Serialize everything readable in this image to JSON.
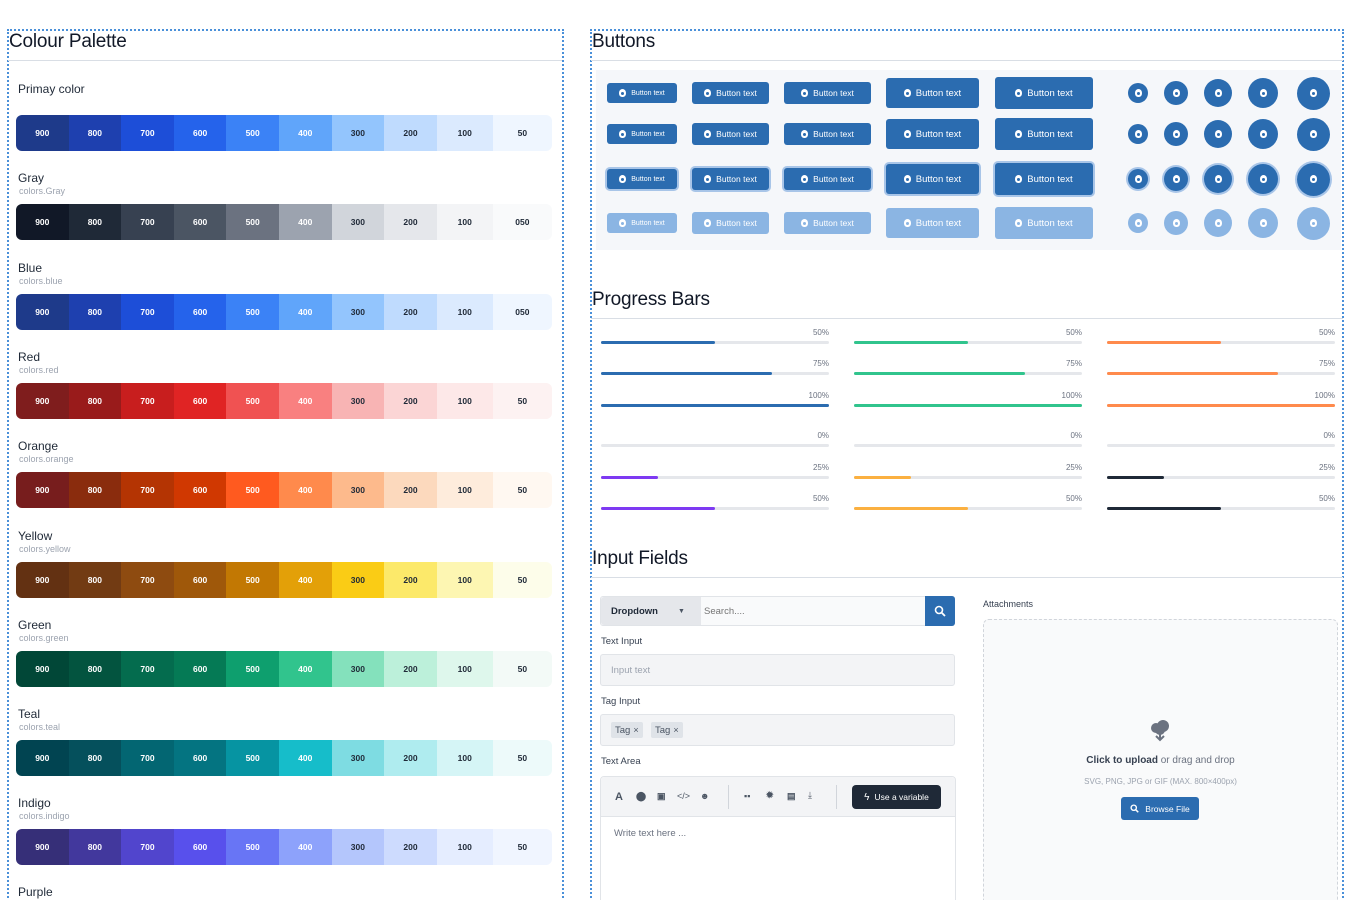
{
  "palette": {
    "title": "Colour Palette",
    "groups": [
      {
        "name": "Primay color",
        "sub": "",
        "labels": [
          "900",
          "800",
          "700",
          "600",
          "500",
          "400",
          "300",
          "200",
          "100",
          "50"
        ],
        "colors": [
          "#1e3a8a",
          "#1e40af",
          "#1d4ed8",
          "#2563eb",
          "#3b82f6",
          "#60a5fa",
          "#93c5fd",
          "#bfdbfe",
          "#dbeafe",
          "#eff6ff"
        ]
      },
      {
        "name": "Gray",
        "sub": "colors.Gray",
        "labels": [
          "900",
          "800",
          "700",
          "600",
          "500",
          "400",
          "300",
          "200",
          "100",
          "050"
        ],
        "colors": [
          "#111827",
          "#1f2937",
          "#374151",
          "#4b5563",
          "#6b7280",
          "#9ca3af",
          "#d1d5db",
          "#e5e7eb",
          "#f3f4f6",
          "#f9fafb"
        ]
      },
      {
        "name": "Blue",
        "sub": "colors.blue",
        "labels": [
          "900",
          "800",
          "700",
          "600",
          "500",
          "400",
          "300",
          "200",
          "100",
          "050"
        ],
        "colors": [
          "#1e3a8a",
          "#1e40af",
          "#1d4ed8",
          "#2563eb",
          "#3b82f6",
          "#60a5fa",
          "#93c5fd",
          "#bfdbfe",
          "#dbeafe",
          "#eff6ff"
        ]
      },
      {
        "name": "Red",
        "sub": "colors.red",
        "labels": [
          "900",
          "800",
          "700",
          "600",
          "500",
          "400",
          "300",
          "200",
          "100",
          "50"
        ],
        "colors": [
          "#7f1d1d",
          "#991b1b",
          "#c81e1e",
          "#e02424",
          "#f05252",
          "#f98080",
          "#f8b4b4",
          "#fbd5d5",
          "#fde8e8",
          "#fdf2f2"
        ]
      },
      {
        "name": "Orange",
        "sub": "colors.orange",
        "labels": [
          "900",
          "800",
          "700",
          "600",
          "500",
          "400",
          "300",
          "200",
          "100",
          "50"
        ],
        "colors": [
          "#771d1d",
          "#8a2c0d",
          "#b43403",
          "#d03801",
          "#ff5a1f",
          "#ff8a4c",
          "#fdba8c",
          "#fcd9bd",
          "#feecdc",
          "#fff8f1"
        ]
      },
      {
        "name": "Yellow",
        "sub": "colors.yellow",
        "labels": [
          "900",
          "800",
          "700",
          "600",
          "500",
          "400",
          "300",
          "200",
          "100",
          "50"
        ],
        "colors": [
          "#633112",
          "#723b13",
          "#8e4b10",
          "#9f580a",
          "#c27803",
          "#e3a008",
          "#facc15",
          "#fce96a",
          "#fdf6b2",
          "#fdfdea"
        ]
      },
      {
        "name": "Green",
        "sub": "colors.green",
        "labels": [
          "900",
          "800",
          "700",
          "600",
          "500",
          "400",
          "300",
          "200",
          "100",
          "50"
        ],
        "colors": [
          "#014737",
          "#03543f",
          "#046c4e",
          "#057a55",
          "#0e9f6e",
          "#31c48d",
          "#84e1bc",
          "#bcf0da",
          "#def7ec",
          "#f3faf7"
        ]
      },
      {
        "name": "Teal",
        "sub": "colors.teal",
        "labels": [
          "900",
          "800",
          "700",
          "600",
          "500",
          "400",
          "300",
          "200",
          "100",
          "50"
        ],
        "colors": [
          "#014451",
          "#05505c",
          "#036672",
          "#047481",
          "#0694a2",
          "#16bdca",
          "#7edce2",
          "#afecef",
          "#d5f5f6",
          "#edfafa"
        ]
      },
      {
        "name": "Indigo",
        "sub": "colors.indigo",
        "labels": [
          "900",
          "800",
          "700",
          "600",
          "500",
          "400",
          "300",
          "200",
          "100",
          "50"
        ],
        "colors": [
          "#362f78",
          "#42389d",
          "#5145cd",
          "#5850ec",
          "#6875f5",
          "#8da2fb",
          "#b4c6fc",
          "#cddbfe",
          "#e5edff",
          "#f0f5ff"
        ]
      },
      {
        "name": "Purple",
        "sub": "",
        "labels": [],
        "colors": []
      }
    ]
  },
  "buttons": {
    "title": "Buttons",
    "label": "Button text",
    "primary_color": "#2b6cb0",
    "light_color": "#8bb5e3",
    "icon": "flame-icon"
  },
  "progress": {
    "title": "Progress Bars",
    "rows": [
      {
        "labels": [
          "50%",
          "50%",
          "50%"
        ],
        "values": [
          50,
          50,
          50
        ],
        "colors": [
          "#2b6cb0",
          "#31c48d",
          "#ff8a4c"
        ]
      },
      {
        "labels": [
          "75%",
          "75%",
          "75%"
        ],
        "values": [
          75,
          75,
          75
        ],
        "colors": [
          "#2b6cb0",
          "#31c48d",
          "#ff8a4c"
        ]
      },
      {
        "labels": [
          "100%",
          "100%",
          "100%"
        ],
        "values": [
          100,
          100,
          100
        ],
        "colors": [
          "#2b6cb0",
          "#31c48d",
          "#ff8a4c"
        ]
      },
      {
        "labels": [
          "0%",
          "0%",
          "0%"
        ],
        "values": [
          0,
          0,
          0
        ],
        "colors": [
          "#7e3af2",
          "#fbb040",
          "#1f2937"
        ]
      },
      {
        "labels": [
          "25%",
          "25%",
          "25%"
        ],
        "values": [
          25,
          25,
          25
        ],
        "colors": [
          "#7e3af2",
          "#fbb040",
          "#1f2937"
        ]
      },
      {
        "labels": [
          "50%",
          "50%",
          "50%"
        ],
        "values": [
          50,
          50,
          50
        ],
        "colors": [
          "#7e3af2",
          "#fbb040",
          "#1f2937"
        ]
      }
    ]
  },
  "inputs": {
    "title": "Input Fields",
    "dropdown_label": "Dropdown",
    "search_placeholder": "Search....",
    "text_input_label": "Text Input",
    "text_input_placeholder": "Input text",
    "tag_input_label": "Tag Input",
    "tags": [
      "Tag",
      "Tag"
    ],
    "text_area_label": "Text Area",
    "variable_button": "Use a variable",
    "text_area_placeholder": "Write text here ...",
    "attachments_label": "Attachments",
    "upload_bold": "Click to upload",
    "upload_rest": " or drag and drop",
    "upload_hint": "SVG, PNG, JPG or GIF (MAX. 800×400px)",
    "browse_button": "Browse File"
  }
}
